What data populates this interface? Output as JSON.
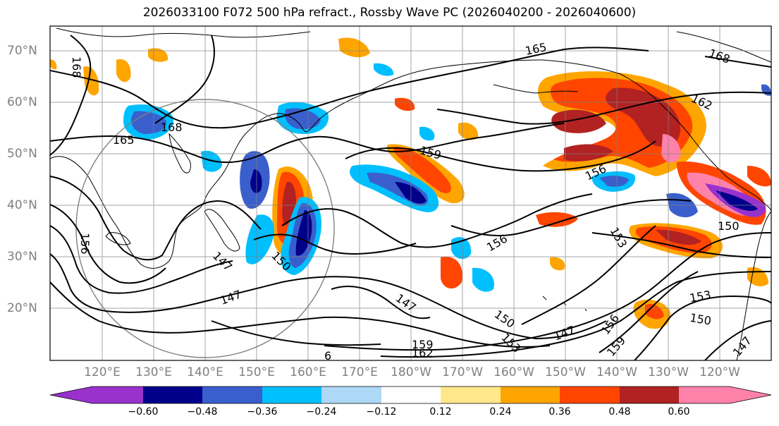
{
  "title": "2026033100 F072 500 hPa refract., Rossby Wave PC (2026040200 - 2026040600)",
  "lat_labels": [
    "70°N",
    "60°N",
    "50°N",
    "40°N",
    "30°N",
    "20°N"
  ],
  "lon_labels": [
    "120°E",
    "130°E",
    "140°E",
    "150°E",
    "160°E",
    "170°E",
    "180°W",
    "170°W",
    "160°W",
    "150°W",
    "140°W",
    "130°W",
    "120°W"
  ],
  "contour_labels": [
    "168",
    "165",
    "168",
    "165",
    "159",
    "156",
    "162",
    "168",
    "156",
    "153",
    "150",
    "156",
    "147",
    "150",
    "147",
    "147",
    "150",
    "153",
    "147",
    "156",
    "159",
    "153",
    "150",
    "147",
    "159",
    "162",
    "6"
  ],
  "colorbar": {
    "ticks": [
      "−0.60",
      "−0.48",
      "−0.36",
      "−0.24",
      "−0.12",
      "0.12",
      "0.24",
      "0.36",
      "0.48",
      "0.60"
    ],
    "colors": [
      "#9932cc",
      "#00008b",
      "#3a5fcd",
      "#00bfff",
      "#add8f6",
      "#ffffff",
      "#ffe88a",
      "#ffa500",
      "#ff4500",
      "#b22222",
      "#ff82ab"
    ]
  },
  "colors": {
    "neg_strong": "#00008b",
    "neg_mid": "#3a5fcd",
    "neg_light": "#00bfff",
    "neg_pale": "#add8f6",
    "pos_pale": "#ffe88a",
    "pos_mid": "#ffa500",
    "pos_strong": "#ff4500",
    "pos_dark": "#b22222",
    "pos_pink": "#ff82ab",
    "neg_purple": "#9932cc"
  }
}
